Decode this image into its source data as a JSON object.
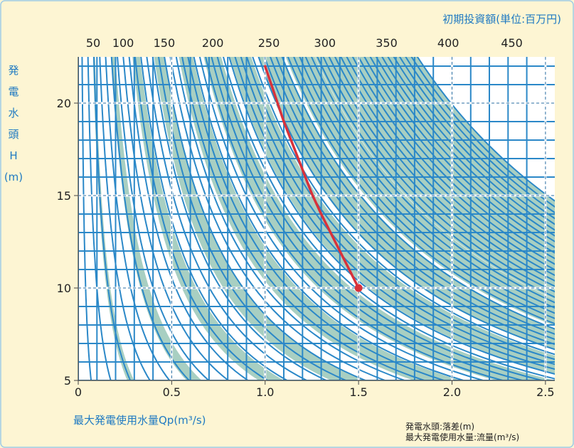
{
  "chart_data": {
    "type": "line",
    "title": "初期投資額(単位:百万円)",
    "xlabel": "最大発電使用水量Qp(m³/s)",
    "ylabel_chars": [
      "発",
      "電",
      "水",
      "頭",
      "H",
      "(m)"
    ],
    "xlim": [
      0,
      2.55
    ],
    "ylim": [
      5,
      22.5
    ],
    "x_ticks": [
      "0",
      "0.5",
      "1.0",
      "1.5",
      "2.0",
      "2.5"
    ],
    "x_tick_values": [
      0,
      0.5,
      1.0,
      1.5,
      2.0,
      2.5
    ],
    "y_ticks": [
      "5",
      "10",
      "15",
      "20"
    ],
    "y_tick_values": [
      5,
      10,
      15,
      20
    ],
    "top_axis": {
      "label": "初期投資額(単位:百万円)",
      "ticks": [
        "50",
        "100",
        "150",
        "200",
        "250",
        "300",
        "350",
        "400",
        "450"
      ],
      "tick_values": [
        50,
        100,
        150,
        200,
        250,
        300,
        350,
        400,
        450
      ]
    },
    "grid": true,
    "series": [
      {
        "color": "#d8323a",
        "x": [
          1.0,
          1.05,
          1.1,
          1.15,
          1.2,
          1.25,
          1.3,
          1.35,
          1.4,
          1.45,
          1.5
        ],
        "y": [
          22.0,
          20.5,
          19.0,
          17.7,
          16.4,
          15.1,
          14.0,
          13.0,
          12.0,
          11.0,
          10.0
        ]
      }
    ],
    "marker": {
      "x": 1.5,
      "y": 10,
      "color": "#d8323a"
    },
    "notes": [
      "発電水頭:落差(m)",
      "最大発電使用水量:流量(m³/s)"
    ],
    "colors": {
      "background": "#fdf5d3",
      "plot_bg": "#ffffff",
      "grid_line": "#2b88c8",
      "band": "#a8cfc2",
      "label": "#1f7ac2"
    }
  }
}
